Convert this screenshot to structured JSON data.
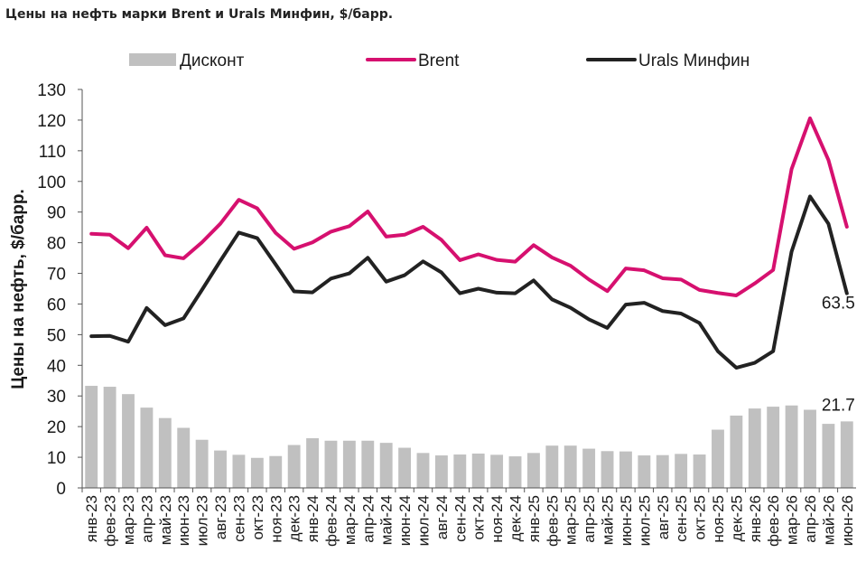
{
  "title": "Цены на нефть марки Brent и Urals Минфин, $/барр.",
  "chart_data": {
    "type": "bar+line",
    "ylabel": "Цены на нефть, $/барр.",
    "ylim": [
      0,
      130
    ],
    "yticks": [
      0,
      10,
      20,
      30,
      40,
      50,
      60,
      70,
      80,
      90,
      100,
      110,
      120,
      130
    ],
    "grid": false,
    "legend_position": "top",
    "categories": [
      "янв-23",
      "фев-23",
      "мар-23",
      "апр-23",
      "май-23",
      "июн-23",
      "июл-23",
      "авг-23",
      "сен-23",
      "окт-23",
      "ноя-23",
      "дек-23",
      "янв-24",
      "фев-24",
      "мар-24",
      "апр-24",
      "май-24",
      "июн-24",
      "июл-24",
      "авг-24",
      "сен-24",
      "окт-24",
      "ноя-24",
      "дек-24",
      "янв-25",
      "фев-25",
      "мар-25",
      "апр-25",
      "май-25",
      "июн-25",
      "июл-25",
      "авг-25",
      "сен-25",
      "окт-25",
      "ноя-25",
      "дек-25",
      "янв-26",
      "фев-26",
      "мар-26",
      "апр-26",
      "май-26",
      "июн-26"
    ],
    "series": [
      {
        "name": "Дисконт",
        "kind": "bar",
        "color": "#c0c0c0",
        "values": [
          33.3,
          33.0,
          30.6,
          26.2,
          22.8,
          19.6,
          15.7,
          12.2,
          10.8,
          9.8,
          10.4,
          14.0,
          16.2,
          15.4,
          15.4,
          15.4,
          14.7,
          13.1,
          11.4,
          10.6,
          10.9,
          11.2,
          10.8,
          10.3,
          11.4,
          13.8,
          13.8,
          12.8,
          12.0,
          11.9,
          10.6,
          10.7,
          11.1,
          10.9,
          19.0,
          23.6,
          25.9,
          26.5,
          26.9,
          25.5,
          20.9,
          21.7
        ]
      },
      {
        "name": "Brent",
        "kind": "line",
        "color": "#d6106f",
        "values": [
          82.9,
          82.6,
          78.2,
          84.9,
          75.9,
          74.9,
          80.1,
          86.2,
          94.0,
          91.2,
          83.2,
          78.0,
          80.1,
          83.6,
          85.4,
          90.2,
          82.0,
          82.6,
          85.2,
          80.9,
          74.3,
          76.2,
          74.4,
          73.8,
          79.2,
          75.2,
          72.5,
          68.0,
          64.2,
          71.6,
          71.0,
          68.4,
          68.0,
          64.6,
          63.6,
          62.8,
          66.7,
          71.1,
          104.0,
          120.6,
          107.0,
          85.2
        ]
      },
      {
        "name": "Urals Минфин",
        "kind": "line",
        "color": "#222222",
        "values": [
          49.5,
          49.6,
          47.7,
          58.7,
          53.1,
          55.3,
          64.6,
          74.1,
          83.3,
          81.5,
          72.9,
          64.1,
          63.8,
          68.3,
          70.0,
          75.1,
          67.3,
          69.4,
          73.9,
          70.3,
          63.5,
          65.0,
          63.7,
          63.5,
          67.7,
          61.5,
          58.8,
          55.0,
          52.2,
          59.8,
          60.4,
          57.7,
          56.9,
          53.8,
          44.6,
          39.2,
          40.8,
          44.6,
          77.1,
          95.1,
          86.2,
          63.5
        ]
      }
    ],
    "annotations": [
      "63.5",
      "21.7"
    ]
  }
}
